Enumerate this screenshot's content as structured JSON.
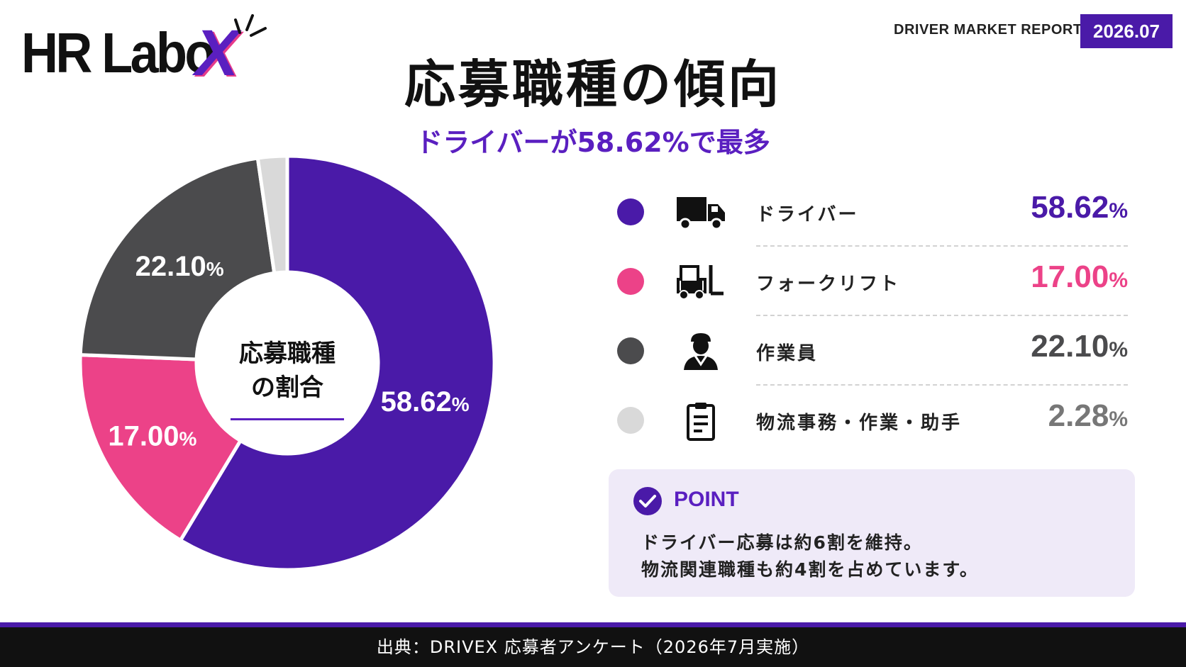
{
  "logo": {
    "text": "HR Labo",
    "accent": "X"
  },
  "header": {
    "report_label": "DRIVER MARKET REPORT",
    "date": "2026.07",
    "title": "応募職種の傾向",
    "subtitle": "ドライバーが58.62%で最多"
  },
  "chart_data": {
    "type": "pie",
    "donut": true,
    "center_label": [
      "応募職種",
      "の割合"
    ],
    "slices": [
      {
        "name": "ドライバー",
        "value": 58.62,
        "label": "58.62",
        "color": "#4a1aa8",
        "label_color": "#ffffff",
        "icon": "truck-icon"
      },
      {
        "name": "フォークリフト",
        "value": 17.0,
        "label": "17.00",
        "color": "#ec4288",
        "label_color": "#ffffff",
        "icon": "forklift-icon"
      },
      {
        "name": "作業員",
        "value": 22.1,
        "label": "22.10",
        "color": "#4b4b4d",
        "label_color": "#ffffff",
        "icon": "worker-icon"
      },
      {
        "name": "物流事務・作業・助手",
        "value": 2.28,
        "label": "2.28",
        "color": "#d9d9d9",
        "label_color": "#222222",
        "icon": "clipboard-icon"
      }
    ],
    "percent_symbol": "%"
  },
  "legend_value_colors": [
    "#4a1aa8",
    "#ec4288",
    "#4b4b4d",
    "#777777"
  ],
  "point": {
    "title": "POINT",
    "lines": [
      "ドライバー応募は約6割を維持。",
      "物流関連職種も約4割を占めています。"
    ]
  },
  "footer": {
    "source": "出典：DRIVEX 応募者アンケート（2026年7月実施）"
  }
}
